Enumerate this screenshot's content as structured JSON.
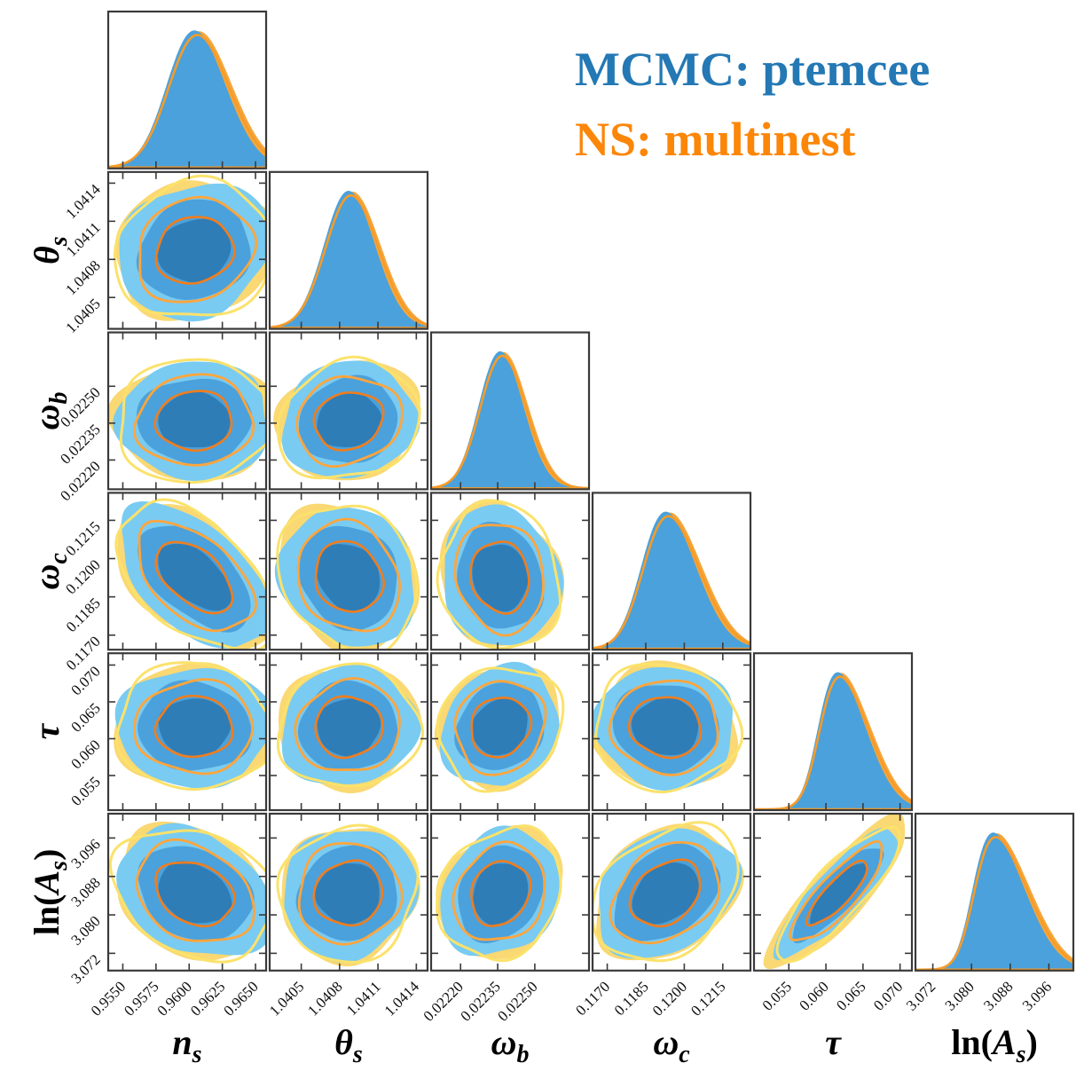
{
  "chart_data": {
    "type": "contour-corner",
    "description": "Triangle (corner) plot comparing posterior distributions of six cosmological parameters from two samplers",
    "legend": [
      {
        "label": "MCMC: ptemcee",
        "color": "#2478B4"
      },
      {
        "label": "NS: multinest",
        "color": "#FC8608"
      }
    ],
    "colors": {
      "mcmc_fill_light": "#79CBF2",
      "mcmc_fill_mid": "#4BA1DB",
      "mcmc_fill_dark": "#2E7DB7",
      "ns_line_outer": "#FBE26B",
      "ns_line_mid": "#FFA53C",
      "ns_line_inner": "#F17D1C",
      "ns_fill_2d": "#FAD873",
      "ns_fill_1d": "#F5A73C",
      "ns_line_1d": "#F79B28",
      "frame": "#3A3A3A",
      "tick_text": "#111111",
      "axis_label_text": "#000000",
      "background": "#FFFFFF"
    },
    "contour_levels": 3,
    "sigma_scales": {
      "fill": [
        1.25,
        1.95,
        2.65
      ],
      "ns_line": [
        1.32,
        2.02,
        2.72
      ],
      "ns_underfill": 2.75,
      "ns_underfill_tau_lnAs": 3.05
    },
    "parameters": [
      {
        "id": "n_s",
        "label": {
          "pre": "",
          "main": "n",
          "sub": "s",
          "post": ""
        },
        "axis_min": 0.9539,
        "axis_max": 0.9658,
        "ticks": [
          0.955,
          0.9575,
          0.96,
          0.9625,
          0.965
        ],
        "tick_labels": [
          "0.9550",
          "0.9575",
          "0.9600",
          "0.9625",
          "0.9650"
        ],
        "mean": 0.9604,
        "sigma": 0.0022,
        "skew": 0.08
      },
      {
        "id": "theta_s",
        "label": {
          "pre": "",
          "main": "θ",
          "sub": "s",
          "post": ""
        },
        "axis_min": 1.040253,
        "axis_max": 1.041488,
        "ticks": [
          1.0405,
          1.0408,
          1.0411,
          1.0414
        ],
        "tick_labels": [
          "1.0405",
          "1.0408",
          "1.0411",
          "1.0414"
        ],
        "mean": 1.04087,
        "sigma": 0.0002,
        "skew": 0.05
      },
      {
        "id": "omega_b",
        "label": {
          "pre": "",
          "main": "ω",
          "sub": "b",
          "post": ""
        },
        "axis_min": 0.022081,
        "axis_max": 0.022719,
        "ticks": [
          0.0222,
          0.02235,
          0.0225
        ],
        "tick_labels": [
          "0.02220",
          "0.02235",
          "0.02250"
        ],
        "mean": 0.02236,
        "sigma": 9e-05,
        "skew": 0.05
      },
      {
        "id": "omega_c",
        "label": {
          "pre": "",
          "main": "ω",
          "sub": "c",
          "post": ""
        },
        "axis_min": 0.116428,
        "axis_max": 0.122578,
        "ticks": [
          0.117,
          0.1185,
          0.12,
          0.1215
        ],
        "tick_labels": [
          "0.1170",
          "0.1185",
          "0.1200",
          "0.1215"
        ],
        "mean": 0.11928,
        "sigma": 0.00105,
        "skew": 0.15
      },
      {
        "id": "tau",
        "label": {
          "pre": "",
          "main": "τ",
          "sub": "",
          "post": ""
        },
        "axis_min": 0.0503,
        "axis_max": 0.0716,
        "ticks": [
          0.055,
          0.06,
          0.065,
          0.07
        ],
        "tick_labels": [
          "0.055",
          "0.060",
          "0.065",
          "0.070"
        ],
        "mean": 0.0616,
        "sigma": 0.0031,
        "skew": 0.25
      },
      {
        "id": "ln_As",
        "label": {
          "pre": "ln(",
          "main": "A",
          "sub": "s",
          "post": ")"
        },
        "axis_min": 3.06841,
        "axis_max": 3.10106,
        "ticks": [
          3.072,
          3.08,
          3.088,
          3.096
        ],
        "tick_labels": [
          "3.072",
          "3.080",
          "3.088",
          "3.096"
        ],
        "mean": 3.0845,
        "sigma": 0.0051,
        "skew": 0.3
      }
    ],
    "correlations": {
      "1-0": 0.12,
      "2-0": 0.02,
      "2-1": 0.12,
      "3-0": -0.52,
      "3-1": -0.15,
      "3-2": -0.12,
      "4-0": -0.02,
      "4-1": 0.05,
      "4-2": 0.12,
      "4-3": -0.05,
      "5-0": -0.25,
      "5-1": 0.05,
      "5-2": 0.18,
      "5-3": 0.3,
      "5-4": 0.85
    }
  }
}
